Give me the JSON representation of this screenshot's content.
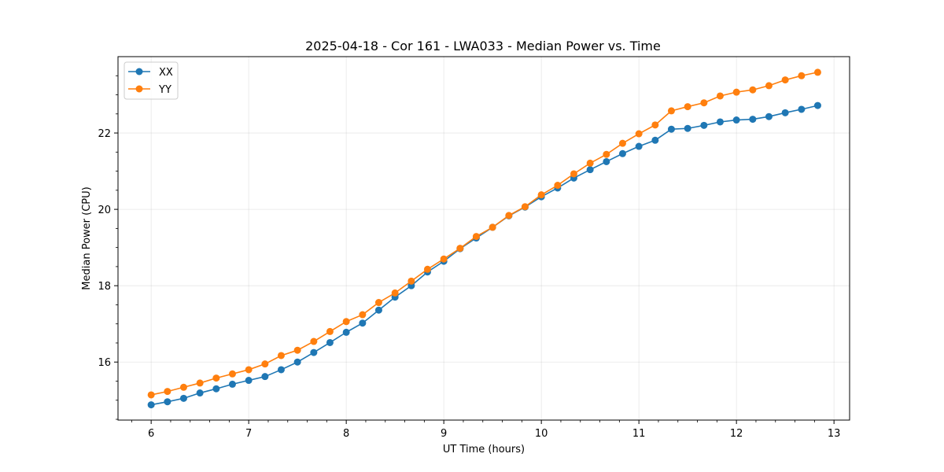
{
  "chart_data": {
    "type": "line",
    "title": "2025-04-18 - Cor 161 - LWA033 - Median Power vs. Time",
    "xlabel": "UT Time (hours)",
    "ylabel": "Median Power (CPU)",
    "xlim": [
      5.66,
      13.16
    ],
    "ylim": [
      14.48,
      24.0
    ],
    "xticks": [
      6,
      7,
      8,
      9,
      10,
      11,
      12,
      13
    ],
    "xtick_labels": [
      "6",
      "7",
      "8",
      "9",
      "10",
      "11",
      "12",
      "13"
    ],
    "yticks": [
      16,
      18,
      20,
      22
    ],
    "ytick_labels": [
      "16",
      "18",
      "20",
      "22"
    ],
    "grid": true,
    "legend_position": "top-left",
    "x": [
      6.0,
      6.167,
      6.333,
      6.5,
      6.667,
      6.833,
      7.0,
      7.167,
      7.333,
      7.5,
      7.667,
      7.833,
      8.0,
      8.167,
      8.333,
      8.5,
      8.667,
      8.833,
      9.0,
      9.167,
      9.333,
      9.5,
      9.667,
      9.833,
      10.0,
      10.167,
      10.333,
      10.5,
      10.667,
      10.833,
      11.0,
      11.167,
      11.333,
      11.5,
      11.667,
      11.833,
      12.0,
      12.167,
      12.333,
      12.5,
      12.667,
      12.833
    ],
    "series": [
      {
        "name": "XX",
        "color": "#1f77b4",
        "values": [
          14.88,
          14.96,
          15.05,
          15.19,
          15.3,
          15.42,
          15.52,
          15.62,
          15.8,
          16.0,
          16.25,
          16.51,
          16.78,
          17.02,
          17.36,
          17.7,
          18.0,
          18.36,
          18.64,
          18.97,
          19.25,
          19.53,
          19.83,
          20.06,
          20.33,
          20.56,
          20.82,
          21.04,
          21.25,
          21.46,
          21.65,
          21.81,
          22.1,
          22.12,
          22.2,
          22.29,
          22.34,
          22.36,
          22.43,
          22.53,
          22.62,
          22.72
        ]
      },
      {
        "name": "YY",
        "color": "#ff7f0e",
        "values": [
          15.14,
          15.23,
          15.34,
          15.45,
          15.58,
          15.69,
          15.8,
          15.95,
          16.17,
          16.31,
          16.54,
          16.8,
          17.06,
          17.24,
          17.56,
          17.81,
          18.12,
          18.43,
          18.7,
          18.98,
          19.29,
          19.53,
          19.84,
          20.07,
          20.38,
          20.63,
          20.93,
          21.21,
          21.44,
          21.73,
          21.98,
          22.21,
          22.58,
          22.69,
          22.79,
          22.97,
          23.07,
          23.13,
          23.24,
          23.39,
          23.5,
          23.59
        ]
      }
    ]
  }
}
